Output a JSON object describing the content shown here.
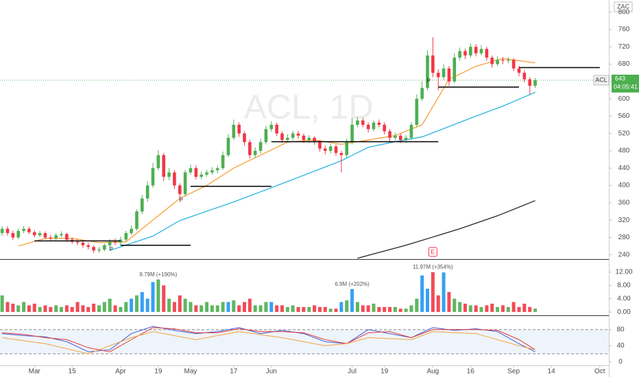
{
  "chart_data": [
    {
      "type": "candlestick",
      "watermark": "ACL, 1D",
      "tag": "ZAC",
      "up_color": "#4caf50",
      "down_color": "#f23645",
      "open": [
        290,
        300,
        290,
        280,
        295,
        300,
        292,
        285,
        290,
        280,
        278,
        285,
        288,
        275,
        270,
        268,
        262,
        258,
        250,
        252,
        262,
        270,
        268,
        275,
        290,
        300,
        340,
        370,
        400,
        440,
        470,
        420,
        430,
        400,
        380,
        430,
        440,
        420,
        425,
        430,
        435,
        440,
        470,
        510,
        540,
        520,
        500,
        470,
        480,
        500,
        530,
        540,
        520,
        505,
        510,
        520,
        515,
        505,
        510,
        500,
        485,
        480,
        490,
        475,
        470,
        500,
        540,
        550,
        540,
        530,
        545,
        540,
        525,
        510,
        515,
        505,
        510,
        540,
        600,
        625,
        700,
        660,
        650,
        670,
        640,
        695,
        710,
        700,
        720,
        705,
        715,
        695,
        680,
        690,
        688,
        690,
        670,
        660,
        645,
        630
      ],
      "high": [
        306,
        306,
        296,
        300,
        306,
        305,
        297,
        295,
        294,
        286,
        290,
        294,
        291,
        280,
        276,
        272,
        268,
        262,
        258,
        266,
        276,
        278,
        282,
        295,
        308,
        345,
        378,
        410,
        452,
        482,
        475,
        440,
        436,
        405,
        436,
        448,
        446,
        432,
        436,
        442,
        446,
        478,
        518,
        552,
        546,
        525,
        506,
        488,
        508,
        538,
        548,
        545,
        525,
        518,
        526,
        526,
        520,
        516,
        514,
        505,
        492,
        496,
        495,
        480,
        508,
        556,
        558,
        556,
        546,
        550,
        552,
        546,
        530,
        522,
        520,
        516,
        546,
        610,
        640,
        712,
        742,
        668,
        680,
        676,
        705,
        718,
        716,
        728,
        726,
        724,
        720,
        700,
        698,
        696,
        696,
        694,
        676,
        666,
        650,
        648
      ],
      "low": [
        284,
        284,
        274,
        276,
        290,
        288,
        280,
        281,
        276,
        272,
        274,
        280,
        270,
        265,
        262,
        256,
        252,
        244,
        245,
        248,
        258,
        262,
        262,
        270,
        285,
        296,
        334,
        362,
        395,
        435,
        410,
        412,
        392,
        368,
        375,
        424,
        414,
        414,
        420,
        425,
        428,
        436,
        465,
        505,
        512,
        492,
        462,
        464,
        474,
        495,
        524,
        514,
        498,
        500,
        504,
        508,
        498,
        498,
        494,
        478,
        472,
        474,
        468,
        430,
        464,
        495,
        534,
        534,
        522,
        525,
        534,
        518,
        502,
        504,
        498,
        498,
        505,
        535,
        595,
        620,
        650,
        620,
        644,
        630,
        636,
        688,
        692,
        695,
        698,
        700,
        688,
        672,
        676,
        680,
        682,
        664,
        652,
        638,
        610,
        625
      ],
      "close": [
        300,
        290,
        280,
        295,
        300,
        292,
        285,
        290,
        280,
        278,
        285,
        288,
        275,
        270,
        268,
        262,
        258,
        250,
        252,
        262,
        270,
        268,
        275,
        290,
        300,
        340,
        370,
        400,
        440,
        470,
        420,
        430,
        400,
        380,
        430,
        440,
        420,
        425,
        430,
        435,
        440,
        470,
        510,
        540,
        520,
        500,
        470,
        480,
        500,
        530,
        540,
        520,
        505,
        510,
        520,
        515,
        505,
        510,
        500,
        485,
        480,
        490,
        475,
        470,
        500,
        540,
        550,
        540,
        530,
        545,
        540,
        525,
        510,
        515,
        505,
        510,
        540,
        600,
        625,
        700,
        660,
        650,
        670,
        640,
        695,
        710,
        700,
        720,
        705,
        715,
        695,
        680,
        690,
        688,
        690,
        670,
        660,
        645,
        630,
        643
      ],
      "xlim": [
        -0.4,
        112.3
      ],
      "xticks": [
        {
          "value": 6,
          "label": "Mar"
        },
        {
          "value": 13,
          "label": "15"
        },
        {
          "value": 22,
          "label": "Apr"
        },
        {
          "value": 29,
          "label": "19"
        },
        {
          "value": 35,
          "label": "May"
        },
        {
          "value": 43,
          "label": "17"
        },
        {
          "value": 50,
          "label": "Jun"
        },
        {
          "value": 65,
          "label": "Jul"
        },
        {
          "value": 71,
          "label": "19"
        },
        {
          "value": 80,
          "label": "Aug"
        },
        {
          "value": 87,
          "label": "16"
        },
        {
          "value": 95,
          "label": "Sep"
        },
        {
          "value": 102,
          "label": "14"
        },
        {
          "value": 111,
          "label": "Oct"
        }
      ],
      "ylim": [
        230,
        828
      ],
      "yticks": [
        240,
        280,
        320,
        360,
        400,
        440,
        480,
        520,
        560,
        600,
        640,
        680,
        720,
        760,
        800
      ],
      "overlays": [
        {
          "color": "#f5a03a",
          "x": [
            3,
            8,
            13,
            18,
            23,
            28,
            33,
            38,
            43,
            48,
            53,
            58,
            63,
            68,
            73,
            78,
            83,
            88,
            93,
            99
          ],
          "values": [
            260,
            278,
            278,
            268,
            270,
            320,
            370,
            400,
            440,
            470,
            500,
            505,
            495,
            505,
            515,
            540,
            645,
            675,
            693,
            683
          ]
        },
        {
          "color": "#2ab6e0",
          "x": [
            20,
            28,
            33,
            43,
            53,
            63,
            68,
            73,
            78,
            83,
            88,
            93,
            99
          ],
          "values": [
            250,
            283,
            319,
            362,
            409,
            457,
            488,
            501,
            512,
            536,
            560,
            583,
            615
          ]
        },
        {
          "color": "#222222",
          "x": [
            66,
            75,
            85,
            92,
            99
          ],
          "values": [
            232,
            262,
            300,
            330,
            365
          ]
        }
      ],
      "hlines": [
        {
          "from": 6,
          "to": 22,
          "value": 272
        },
        {
          "from": 22,
          "to": 35,
          "value": 262
        },
        {
          "from": 35,
          "to": 50,
          "value": 398
        },
        {
          "from": 50,
          "to": 81,
          "value": 501
        },
        {
          "from": 81,
          "to": 96,
          "value": 627
        },
        {
          "from": 96,
          "to": 111,
          "value": 672
        }
      ],
      "markers": [
        {
          "x": 21,
          "label": "P"
        },
        {
          "x": 34,
          "label": "P"
        },
        {
          "x": 80,
          "label": "P"
        }
      ],
      "earnings": {
        "x": 80,
        "label": "E"
      },
      "last_price": {
        "symbol": "ACL",
        "value": 643,
        "countdown": "04:05:41",
        "color": "#4caf50"
      }
    },
    {
      "type": "volume",
      "up_color": "#4caf50",
      "down_color": "#f23645",
      "highlight_color": "#2196f3",
      "highlight": [
        24,
        26,
        27,
        28,
        42,
        50,
        63,
        65,
        78,
        79,
        82
      ],
      "values": [
        5,
        3,
        2.5,
        2,
        3,
        2,
        2.5,
        1.5,
        2,
        1.5,
        2,
        1.5,
        2,
        1.5,
        3,
        2,
        1.5,
        2.5,
        2,
        3,
        4,
        2,
        1.5,
        3,
        4,
        5,
        6,
        4,
        9,
        9.79,
        8,
        4,
        3,
        5,
        4,
        3,
        2,
        2,
        3,
        2,
        2,
        3,
        3,
        3.5,
        2,
        3,
        4,
        2,
        2,
        3,
        3,
        2,
        2,
        1.5,
        2,
        1.5,
        1.5,
        1.5,
        2,
        1.5,
        1.5,
        1,
        1,
        3,
        3.5,
        6.9,
        3,
        2,
        2,
        2.5,
        1.5,
        1.5,
        1.5,
        1.5,
        1,
        1,
        2,
        4,
        11,
        7,
        11.97,
        5,
        11.9,
        6,
        4,
        3,
        2.5,
        2,
        2,
        1.5,
        2,
        2.5,
        1.5,
        2,
        1.5,
        3,
        1.5,
        2.5,
        1.5,
        1
      ],
      "annotations": [
        {
          "x": 29,
          "label": "9.79M (+190%)"
        },
        {
          "x": 65,
          "label": "6.9M (+202%)"
        },
        {
          "x": 80,
          "label": "11.97M (+354%)"
        }
      ],
      "ylim": [
        -1,
        15.5
      ],
      "yticks": [
        {
          "value": 0,
          "label": "0.00"
        },
        {
          "value": 4,
          "label": "4.00"
        },
        {
          "value": 8,
          "label": "8.00"
        },
        {
          "value": 12,
          "label": "12.00"
        }
      ]
    },
    {
      "type": "line",
      "ylim": [
        -7,
        112
      ],
      "yticks": [
        0,
        40,
        80
      ],
      "bands": [
        20,
        80
      ],
      "series": [
        {
          "color": "#3f5bd8",
          "x": [
            0,
            4,
            8,
            12,
            16,
            20,
            24,
            28,
            32,
            36,
            40,
            44,
            48,
            52,
            56,
            60,
            64,
            68,
            72,
            76,
            80,
            84,
            88,
            92,
            96,
            99
          ],
          "values": [
            70,
            65,
            62,
            50,
            25,
            30,
            70,
            88,
            78,
            70,
            75,
            85,
            70,
            78,
            70,
            50,
            45,
            80,
            70,
            60,
            85,
            78,
            82,
            75,
            45,
            25
          ]
        },
        {
          "color": "#e53935",
          "x": [
            0,
            4,
            8,
            12,
            16,
            20,
            24,
            28,
            32,
            36,
            40,
            44,
            48,
            52,
            56,
            60,
            64,
            68,
            72,
            76,
            80,
            84,
            88,
            92,
            96,
            99
          ],
          "values": [
            72,
            68,
            60,
            55,
            35,
            25,
            55,
            85,
            82,
            72,
            72,
            82,
            75,
            75,
            72,
            55,
            45,
            72,
            75,
            60,
            80,
            80,
            80,
            78,
            55,
            30
          ]
        },
        {
          "color": "#f5a03a",
          "x": [
            0,
            8,
            16,
            24,
            28,
            36,
            44,
            52,
            60,
            64,
            68,
            76,
            80,
            88,
            96,
            99
          ],
          "values": [
            60,
            45,
            20,
            60,
            75,
            55,
            75,
            60,
            40,
            45,
            60,
            55,
            75,
            70,
            40,
            30
          ]
        }
      ]
    }
  ]
}
